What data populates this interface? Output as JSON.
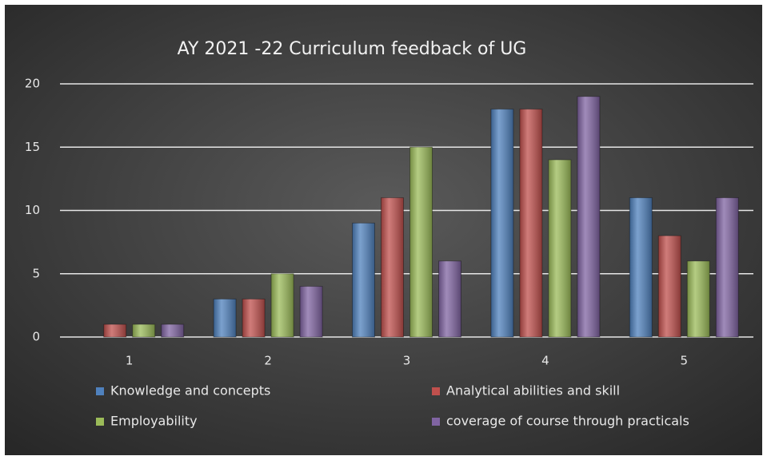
{
  "chart_data": {
    "type": "bar",
    "title": "AY 2021 -22 Curriculum feedback of UG",
    "categories": [
      "1",
      "2",
      "3",
      "4",
      "5"
    ],
    "series": [
      {
        "name": "Knowledge and concepts",
        "color": "#4f81bd",
        "values": [
          0,
          3,
          9,
          18,
          11
        ]
      },
      {
        "name": "Analytical abilities and skill",
        "color": "#c0504d",
        "values": [
          1,
          3,
          11,
          18,
          8
        ]
      },
      {
        "name": "Employability",
        "color": "#9bbb59",
        "values": [
          1,
          5,
          15,
          14,
          6
        ]
      },
      {
        "name": "coverage of course through practicals",
        "color": "#8064a2",
        "values": [
          1,
          4,
          6,
          19,
          11
        ]
      }
    ],
    "ylim": [
      0,
      20
    ],
    "yticks": [
      0,
      5,
      10,
      15,
      20
    ],
    "grid": true,
    "legend": "bottom"
  }
}
